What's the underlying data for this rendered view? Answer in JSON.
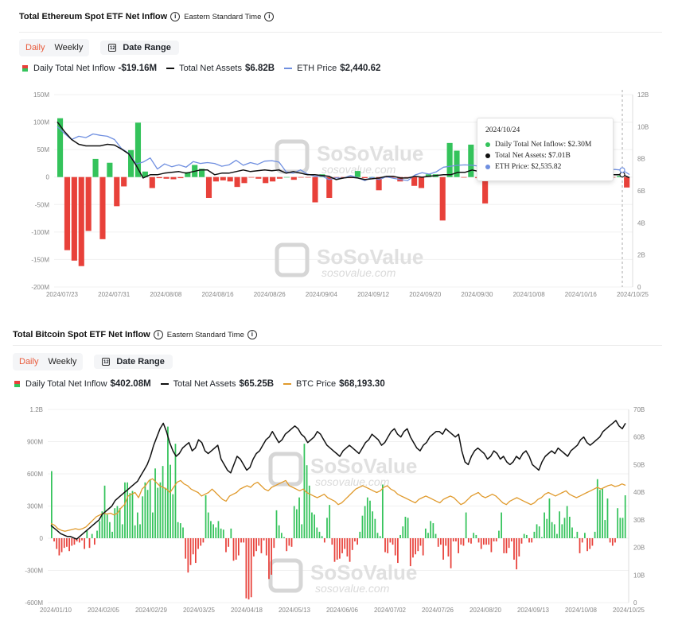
{
  "eth": {
    "title": "Total Ethereum Spot ETF Net Inflow",
    "timezone": "Eastern Standard Time",
    "tabs": {
      "daily": "Daily",
      "weekly": "Weekly"
    },
    "date_range_label": "Date Range",
    "legend": {
      "inflow_label": "Daily Total Net Inflow",
      "inflow_value": "-$19.16M",
      "assets_label": "Total Net Assets",
      "assets_value": "$6.82B",
      "price_label": "ETH Price",
      "price_value": "$2,440.62"
    },
    "watermark": {
      "brand": "SoSoValue",
      "url": "sosovalue.com"
    },
    "tooltip": {
      "date": "2024/10/24",
      "inflow": "Daily Total Net Inflow: $2.30M",
      "assets": "Total Net Assets: $7.01B",
      "price": "ETH Price: $2,535.82"
    }
  },
  "btc": {
    "title": "Total Bitcoin Spot ETF Net Inflow",
    "timezone": "Eastern Standard Time",
    "tabs": {
      "daily": "Daily",
      "weekly": "Weekly"
    },
    "date_range_label": "Date Range",
    "legend": {
      "inflow_label": "Daily Total Net Inflow",
      "inflow_value": "$402.08M",
      "assets_label": "Total Net Assets",
      "assets_value": "$65.25B",
      "price_label": "BTC Price",
      "price_value": "$68,193.30"
    },
    "watermark": {
      "brand": "SoSoValue",
      "url": "sosovalue.com"
    }
  },
  "colors": {
    "positive": "#34c35b",
    "negative": "#e8413a",
    "assets": "#111111",
    "eth_price": "#6f8fe0",
    "btc_price": "#e09a2c"
  },
  "chart_data": [
    {
      "type": "bar",
      "title": "Total Ethereum Spot ETF Net Inflow",
      "x_ticks": [
        "2024/07/23",
        "2024/07/31",
        "2024/08/08",
        "2024/08/16",
        "2024/08/26",
        "2024/09/04",
        "2024/09/12",
        "2024/09/20",
        "2024/09/30",
        "2024/10/08",
        "2024/10/16",
        "2024/10/25"
      ],
      "y_left_ticks": [
        "150M",
        "100M",
        "50M",
        "0",
        "-50M",
        "-100M",
        "-150M",
        "-200M"
      ],
      "y_right_ticks": [
        "12B",
        "10B",
        "8B",
        "6B",
        "4B",
        "2B",
        "0"
      ],
      "ylim_left": [
        -200,
        150
      ],
      "ylim_right": [
        0,
        12
      ],
      "inflow_series": {
        "name": "Daily Total Net Inflow",
        "values": [
          107,
          -133,
          -152,
          -162,
          -98,
          33,
          -113,
          26,
          -53,
          -17,
          49,
          99,
          10,
          -20,
          -2,
          -3,
          -4,
          -2,
          9,
          22,
          15,
          -38,
          -8,
          -6,
          -8,
          -18,
          -11,
          -1,
          -3,
          -11,
          -8,
          -3,
          0,
          -5,
          -1,
          -1,
          -46,
          5,
          -38,
          -1,
          -2,
          -2,
          11,
          -2,
          0,
          -24,
          -1,
          -1,
          -8,
          -1,
          -16,
          -20,
          5,
          5,
          -79,
          62,
          48,
          -1,
          59,
          -2,
          -48,
          0,
          0,
          0,
          0,
          0,
          0,
          0,
          0,
          0,
          0,
          0,
          0,
          0,
          0,
          0,
          0,
          -2,
          -1,
          2,
          -19
        ]
      },
      "assets_series": {
        "name": "Total Net Assets",
        "values": [
          10.3,
          9.7,
          9.2,
          8.9,
          8.8,
          8.8,
          8.8,
          8.9,
          8.85,
          8.6,
          8.3,
          7.6,
          6.8,
          7.0,
          7.0,
          7.1,
          7.15,
          7.2,
          7.1,
          7.2,
          7.3,
          7.3,
          7.0,
          7.1,
          7.1,
          7.2,
          7.3,
          7.2,
          7.25,
          7.3,
          7.25,
          7.3,
          7.1,
          7.2,
          7.1,
          7.0,
          7.0,
          6.95,
          6.9,
          6.7,
          6.8,
          6.85,
          6.8,
          6.7,
          6.75,
          6.8,
          6.9,
          6.9,
          6.8,
          6.8,
          6.9,
          6.85,
          6.9,
          6.95,
          7.0,
          7.0,
          7.15,
          7.15,
          7.3,
          7.2,
          6.9,
          6.95,
          7.0,
          7.0,
          7.0,
          7.0,
          7.0,
          7.0,
          7.0,
          7.0,
          7.0,
          7.0,
          7.0,
          7.0,
          7.0,
          7.0,
          7.0,
          7.0,
          7.0,
          7.01,
          6.82
        ]
      },
      "price_series": {
        "name": "ETH Price",
        "values": [
          3480,
          3330,
          3200,
          3270,
          3240,
          3320,
          3290,
          3270,
          3200,
          3000,
          2900,
          2670,
          2710,
          2800,
          2560,
          2670,
          2610,
          2650,
          2600,
          2720,
          2680,
          2700,
          2680,
          2620,
          2650,
          2750,
          2640,
          2700,
          2660,
          2730,
          2740,
          2710,
          2500,
          2470,
          2540,
          2450,
          2400,
          2410,
          2330,
          2370,
          2360,
          2420,
          2370,
          2310,
          2380,
          2330,
          2390,
          2360,
          2330,
          2310,
          2430,
          2480,
          2450,
          2500,
          2600,
          2620,
          2640,
          2650,
          2640,
          2620,
          2680,
          2560,
          2600,
          2550,
          2550,
          2550,
          2550,
          2550,
          2550,
          2550,
          2550,
          2550,
          2550,
          2550,
          2550,
          2550,
          2550,
          2550,
          2550,
          2535.82,
          2440.62
        ]
      }
    },
    {
      "type": "bar",
      "title": "Total Bitcoin Spot ETF Net Inflow",
      "x_ticks": [
        "2024/01/10",
        "2024/02/05",
        "2024/02/29",
        "2024/03/25",
        "2024/04/18",
        "2024/05/13",
        "2024/06/06",
        "2024/07/02",
        "2024/07/26",
        "2024/08/20",
        "2024/09/13",
        "2024/10/08",
        "2024/10/25"
      ],
      "y_left_ticks": [
        "1.2B",
        "900M",
        "600M",
        "300M",
        "0",
        "-300M",
        "-600M"
      ],
      "y_right_ticks": [
        "70B",
        "60B",
        "50B",
        "40B",
        "30B",
        "20B",
        "10B",
        "0"
      ],
      "ylim_left": [
        -600,
        1200
      ],
      "ylim_right": [
        0,
        70
      ],
      "inflow_series": {
        "name": "Daily Total Net Inflow",
        "values": [
          625,
          -30,
          -100,
          -160,
          -130,
          -90,
          -80,
          -120,
          -70,
          -60,
          -30,
          -40,
          -20,
          -100,
          70,
          -90,
          40,
          -60,
          70,
          160,
          250,
          490,
          220,
          150,
          60,
          280,
          300,
          280,
          130,
          520,
          520,
          420,
          440,
          120,
          240,
          130,
          390,
          520,
          450,
          550,
          240,
          650,
          470,
          520,
          673,
          470,
          1040,
          684,
          410,
          880,
          150,
          140,
          100,
          -190,
          -320,
          -250,
          -150,
          -230,
          -100,
          -70,
          -40,
          400,
          240,
          160,
          130,
          100,
          160,
          90,
          80,
          -130,
          -80,
          90,
          -210,
          -200,
          -160,
          -40,
          -40,
          -560,
          -570,
          -550,
          -170,
          -120,
          -70,
          -140,
          -20,
          -160,
          -380,
          -340,
          -90,
          260,
          120,
          50,
          10,
          -120,
          -70,
          -80,
          300,
          270,
          380,
          130,
          880,
          680,
          490,
          240,
          220,
          100,
          60,
          20,
          -40,
          190,
          310,
          -60,
          -220,
          -200,
          -190,
          -140,
          -100,
          -170,
          -220,
          -110,
          -30,
          -60,
          60,
          210,
          300,
          380,
          350,
          250,
          180,
          50,
          20,
          500,
          -130,
          -140,
          -40,
          -60,
          -160,
          -230,
          30,
          110,
          200,
          190,
          -260,
          -180,
          -150,
          -120,
          -70,
          -160,
          90,
          50,
          160,
          140,
          40,
          -80,
          -60,
          -200,
          -70,
          -170,
          -280,
          -30,
          -30,
          -140,
          -60,
          -70,
          240,
          -40,
          -50,
          50,
          30,
          -40,
          -100,
          -60,
          -60,
          -60,
          -130,
          -30,
          -30,
          70,
          240,
          -140,
          -140,
          -90,
          -30,
          -200,
          -290,
          -170,
          -50,
          40,
          30,
          -40,
          -40,
          60,
          130,
          110,
          10,
          240,
          180,
          370,
          150,
          130,
          40,
          250,
          130,
          190,
          300,
          200,
          100,
          10,
          60,
          -140,
          -40,
          50,
          -120,
          -100,
          -70,
          60,
          550,
          450,
          460,
          170,
          370,
          -40,
          -70,
          -40,
          280,
          190,
          190,
          400
        ]
      },
      "assets_series": {
        "name": "Total Net Assets",
        "values": [
          28,
          27,
          26,
          25,
          24.5,
          24,
          24,
          23.5,
          23,
          24,
          25,
          26,
          27,
          28,
          29,
          30,
          32,
          33,
          34,
          35,
          37,
          38,
          39,
          40,
          41,
          42,
          43,
          44,
          46,
          48,
          50,
          53,
          57,
          60,
          63,
          65,
          62,
          58,
          55,
          53,
          54,
          56,
          57,
          58,
          55,
          56,
          59,
          58,
          55,
          54,
          55,
          56,
          57,
          52,
          50,
          48,
          47,
          50,
          53,
          52,
          50,
          48,
          49,
          52,
          54,
          55,
          57,
          59,
          60,
          62,
          60,
          58,
          59,
          61,
          62,
          63,
          64,
          63,
          61,
          60,
          58,
          59,
          60,
          62,
          61,
          59,
          57,
          56,
          55,
          54,
          53,
          55,
          56,
          57,
          56,
          55,
          54,
          56,
          58,
          59,
          61,
          60,
          59,
          57,
          58,
          60,
          62,
          63,
          61,
          60,
          62,
          63,
          60,
          58,
          56,
          55,
          57,
          58,
          60,
          61,
          62,
          62,
          61,
          63,
          62,
          61,
          60,
          61,
          55,
          51,
          50,
          53,
          55,
          56,
          55,
          54,
          52,
          53,
          55,
          54,
          52,
          53,
          51,
          50,
          51,
          53,
          52,
          54,
          55,
          53,
          50,
          49,
          48,
          51,
          53,
          54,
          55,
          54,
          56,
          55,
          54,
          53,
          55,
          56,
          57,
          59,
          60,
          58,
          57,
          58,
          59,
          60,
          62,
          63,
          64,
          65,
          66,
          64,
          63,
          65
        ]
      },
      "price_series": {
        "name": "BTC Price",
        "values": [
          46000,
          45000,
          43000,
          42000,
          41500,
          42000,
          42500,
          43000,
          42500,
          43000,
          44000,
          46000,
          48000,
          50000,
          51000,
          52000,
          51500,
          52000,
          51000,
          52000,
          55000,
          57000,
          62000,
          63000,
          64000,
          61000,
          66000,
          68000,
          71000,
          72000,
          70000,
          68000,
          67000,
          66000,
          64000,
          67000,
          70000,
          71000,
          69000,
          68000,
          66000,
          65000,
          64000,
          62000,
          63000,
          64000,
          66000,
          64000,
          62000,
          60000,
          59000,
          62000,
          63000,
          64000,
          66000,
          67000,
          68000,
          67000,
          69000,
          70000,
          68000,
          66000,
          65000,
          67000,
          68000,
          69000,
          70000,
          71000,
          68000,
          67000,
          66000,
          65000,
          66000,
          64000,
          63000,
          62000,
          61000,
          62000,
          63000,
          61000,
          60000,
          59000,
          57000,
          58000,
          60000,
          62000,
          64000,
          66000,
          67000,
          68000,
          67000,
          66000,
          65000,
          64000,
          65000,
          67000,
          68000,
          66000,
          65000,
          63000,
          62000,
          61000,
          60000,
          59000,
          58000,
          60000,
          61000,
          62000,
          61000,
          60000,
          59000,
          58000,
          60000,
          61000,
          62000,
          61000,
          59000,
          57000,
          58000,
          60000,
          62000,
          63000,
          64000,
          62000,
          61000,
          62000,
          63000,
          62000,
          60000,
          58000,
          57000,
          59000,
          60000,
          61000,
          60000,
          59000,
          58000,
          57000,
          58000,
          60000,
          61000,
          63000,
          64000,
          63000,
          62000,
          63000,
          64000,
          65000,
          63000,
          62000,
          61000,
          62000,
          63000,
          64000,
          65000,
          66000,
          67000,
          66000,
          67000,
          68000,
          68500,
          67500,
          68000,
          69000,
          68193.3
        ]
      }
    }
  ]
}
